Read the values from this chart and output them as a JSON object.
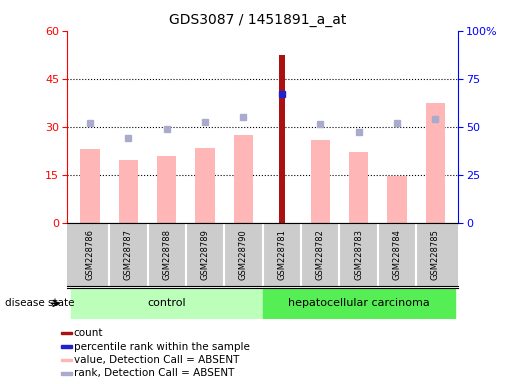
{
  "title": "GDS3087 / 1451891_a_at",
  "samples": [
    "GSM228786",
    "GSM228787",
    "GSM228788",
    "GSM228789",
    "GSM228790",
    "GSM228781",
    "GSM228782",
    "GSM228783",
    "GSM228784",
    "GSM228785"
  ],
  "groups": [
    "control",
    "control",
    "control",
    "control",
    "control",
    "hepatocellular carcinoma",
    "hepatocellular carcinoma",
    "hepatocellular carcinoma",
    "hepatocellular carcinoma",
    "hepatocellular carcinoma"
  ],
  "value_absent": [
    23.0,
    19.5,
    21.0,
    23.5,
    27.5,
    null,
    26.0,
    22.0,
    14.5,
    37.5
  ],
  "rank_absent_pct": [
    52.0,
    44.0,
    49.0,
    52.5,
    55.0,
    null,
    51.5,
    47.5,
    52.0,
    54.0
  ],
  "count_bar": [
    null,
    null,
    null,
    null,
    null,
    52.5,
    null,
    null,
    null,
    null
  ],
  "percentile_rank_pct": [
    null,
    null,
    null,
    null,
    null,
    67.0,
    null,
    null,
    null,
    null
  ],
  "ylim_left": [
    0,
    60
  ],
  "ylim_right": [
    0,
    100
  ],
  "yticks_left": [
    0,
    15,
    30,
    45,
    60
  ],
  "yticks_right": [
    0,
    25,
    50,
    75,
    100
  ],
  "yticklabels_right": [
    "0",
    "25",
    "50",
    "75",
    "100%"
  ],
  "bar_color_absent": "#FFB6B6",
  "rank_color_absent": "#AAAACC",
  "bar_color_count": "#AA1111",
  "percentile_color": "#2222CC",
  "bg_xtick": "#CCCCCC",
  "control_color": "#BBFFBB",
  "carcinoma_color": "#55EE55",
  "bar_width": 0.5,
  "count_bar_width": 0.15,
  "marker_size": 5
}
